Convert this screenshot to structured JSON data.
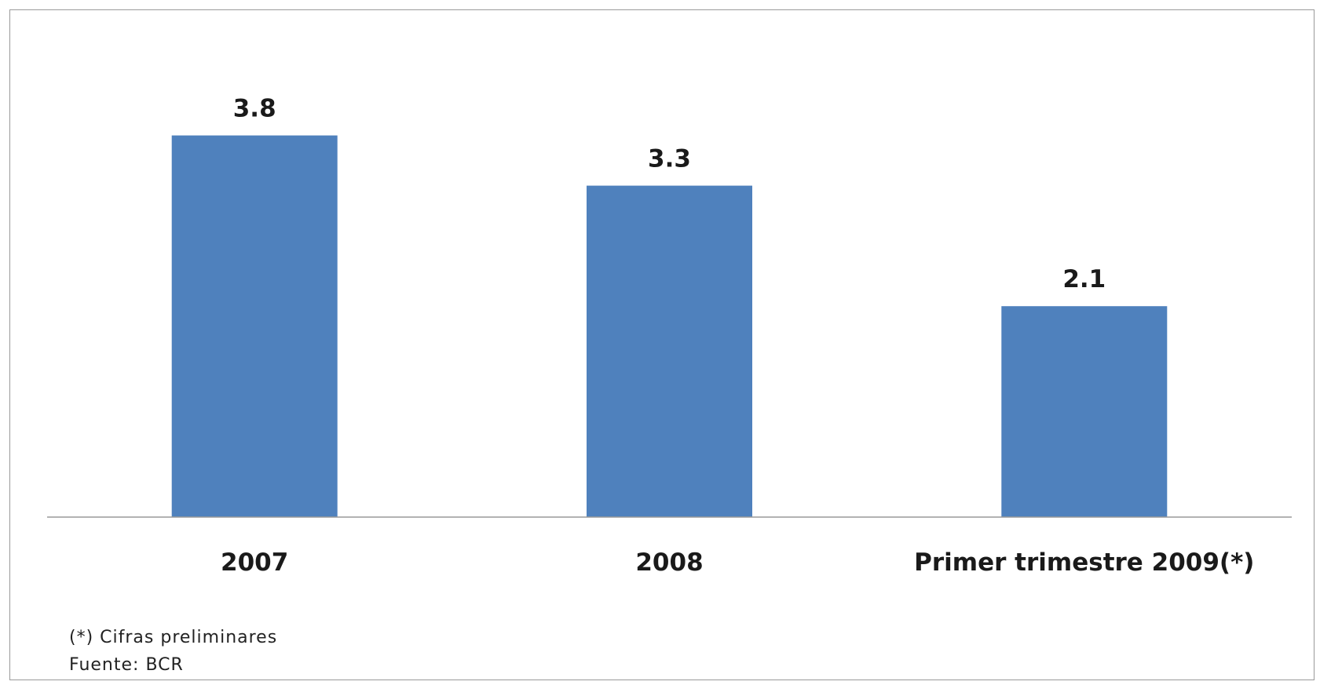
{
  "chart_data": {
    "type": "bar",
    "title": "",
    "xlabel": "",
    "ylabel": "",
    "categories": [
      "2007",
      "2008",
      "Primer trimestre 2009(*)"
    ],
    "values": [
      3.8,
      3.3,
      2.1
    ],
    "value_labels": [
      "3.8",
      "3.3",
      "2.1"
    ],
    "ylim": [
      0,
      4.2
    ],
    "grid": false,
    "legend": "none",
    "bar_color": "#4f81bd"
  },
  "footnotes": {
    "note": "(*) Cifras preliminares",
    "source": "Fuente: BCR"
  }
}
